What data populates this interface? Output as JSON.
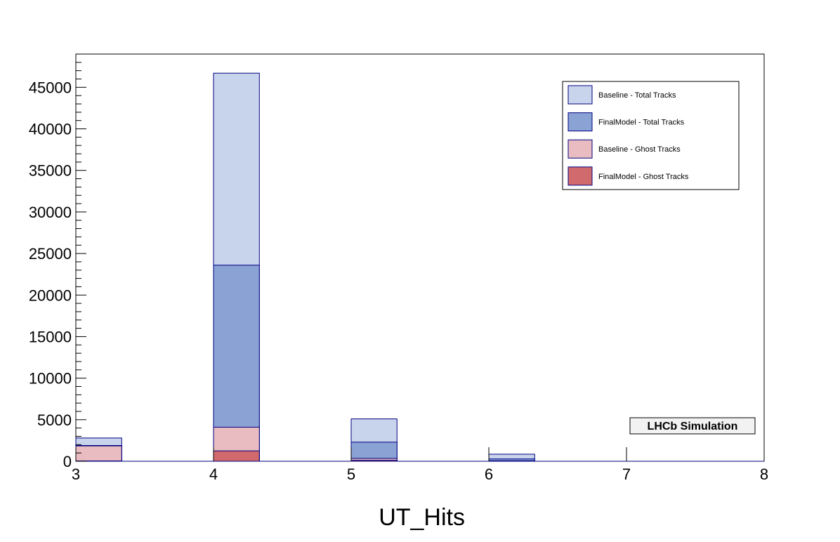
{
  "chart_data": {
    "type": "bar",
    "xlabel": "UT_Hits",
    "ylabel": "",
    "title": "",
    "xlim": [
      3,
      8
    ],
    "ylim": [
      0,
      49000
    ],
    "x_ticks": [
      "3",
      "4",
      "5",
      "6",
      "7",
      "8"
    ],
    "y_ticks": [
      "0",
      "5000",
      "10000",
      "15000",
      "20000",
      "25000",
      "30000",
      "35000",
      "40000",
      "45000"
    ],
    "bin_width": 0.333,
    "bins": [
      3,
      4,
      5,
      6
    ],
    "series": [
      {
        "name": "Baseline - Total Tracks",
        "color": "#c8d4ec",
        "values": [
          2800,
          46700,
          5100,
          850
        ]
      },
      {
        "name": "FinalModel - Total Tracks",
        "color": "#8aa2d4",
        "values": [
          1900,
          23600,
          2300,
          280
        ]
      },
      {
        "name": "Baseline - Ghost Tracks",
        "color": "#e8bcc0",
        "values": [
          1850,
          4100,
          350,
          60
        ]
      },
      {
        "name": "FinalModel - Ghost Tracks",
        "color": "#d06a6c",
        "values": [
          40,
          1250,
          120,
          20
        ]
      }
    ],
    "legend_position": "top-right",
    "grid": false,
    "annotation": "LHCb Simulation"
  }
}
